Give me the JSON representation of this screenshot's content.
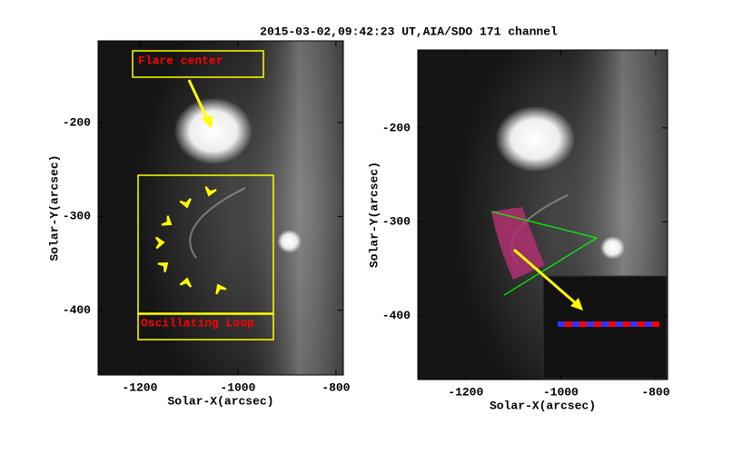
{
  "title": "2015-03-02,09:42:23 UT,AIA/SDO 171 channel",
  "chart_data": [
    {
      "type": "image",
      "x_label": "Solar-X(arcsec)",
      "y_label": "Solar-Y(arcsec)",
      "xlim": [
        -1285,
        -785
      ],
      "ylim": [
        -469,
        -113
      ],
      "xticks": [
        -1200,
        -1000,
        -800
      ],
      "yticks": [
        -400,
        -300,
        -200
      ],
      "annotations": [
        "Flare center",
        "Oscillating Loop"
      ]
    },
    {
      "type": "image",
      "x_label": "Solar-X(arcsec)",
      "y_label": "Solar-Y(arcsec)",
      "xlim": [
        -1301,
        -775
      ],
      "ylim": [
        -468,
        -117
      ],
      "xticks": [
        -1200,
        -1000,
        -800
      ],
      "yticks": [
        -400,
        -300,
        -200
      ]
    }
  ]
}
